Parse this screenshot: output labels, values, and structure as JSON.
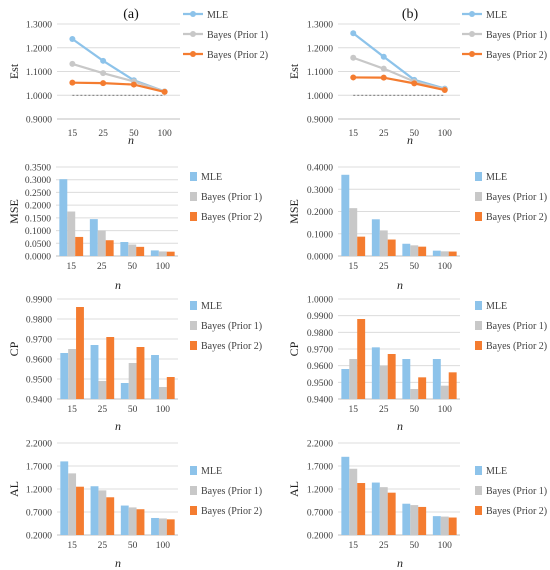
{
  "column_titles": [
    "(a)",
    "(b)"
  ],
  "colors": {
    "MLE": "#8dc3ea",
    "Bayes (Prior 1)": "#c8c8c8",
    "Bayes (Prior 2)": "#f47c30",
    "reference": "#555555",
    "grid": "#dcdcdc",
    "axis": "#bfbfbf"
  },
  "chart_data": [
    {
      "type": "line",
      "panel": "Est-a",
      "categories": [
        "15",
        "25",
        "50",
        "100"
      ],
      "xlabel": "n",
      "ylabel": "Est",
      "ylim": [
        0.9,
        1.3
      ],
      "yticks": [
        "0.9000",
        "1.0000",
        "1.1000",
        "1.2000",
        "1.3000"
      ],
      "reference_line": 1.0,
      "legend": "top-right",
      "series": [
        {
          "name": "MLE",
          "values": [
            1.237,
            1.145,
            1.063,
            1.016
          ]
        },
        {
          "name": "Bayes (Prior 1)",
          "values": [
            1.132,
            1.093,
            1.058,
            1.016
          ]
        },
        {
          "name": "Bayes (Prior 2)",
          "values": [
            1.053,
            1.051,
            1.045,
            1.014
          ]
        }
      ]
    },
    {
      "type": "line",
      "panel": "Est-b",
      "categories": [
        "15",
        "25",
        "50",
        "100"
      ],
      "xlabel": "n",
      "ylabel": "Est",
      "ylim": [
        0.9,
        1.3
      ],
      "yticks": [
        "0.9000",
        "1.0000",
        "1.1000",
        "1.2000",
        "1.3000"
      ],
      "reference_line": 1.0,
      "legend": "top-right",
      "series": [
        {
          "name": "MLE",
          "values": [
            1.261,
            1.162,
            1.065,
            1.028
          ]
        },
        {
          "name": "Bayes (Prior 1)",
          "values": [
            1.158,
            1.112,
            1.058,
            1.025
          ]
        },
        {
          "name": "Bayes (Prior 2)",
          "values": [
            1.075,
            1.074,
            1.05,
            1.022
          ]
        }
      ]
    },
    {
      "type": "bar",
      "panel": "MSE-a",
      "categories": [
        "15",
        "25",
        "50",
        "100"
      ],
      "xlabel": "n",
      "ylabel": "MSE",
      "ylim": [
        0.0,
        0.35
      ],
      "yticks": [
        "0.0000",
        "0.0500",
        "0.1000",
        "0.1500",
        "0.2000",
        "0.2500",
        "0.3000",
        "0.3500"
      ],
      "legend": "right",
      "series": [
        {
          "name": "MLE",
          "values": [
            0.302,
            0.145,
            0.055,
            0.022
          ]
        },
        {
          "name": "Bayes (Prior 1)",
          "values": [
            0.175,
            0.1,
            0.045,
            0.018
          ]
        },
        {
          "name": "Bayes (Prior 2)",
          "values": [
            0.075,
            0.062,
            0.036,
            0.017
          ]
        }
      ]
    },
    {
      "type": "bar",
      "panel": "MSE-b",
      "categories": [
        "15",
        "25",
        "50",
        "100"
      ],
      "xlabel": "n",
      "ylabel": "MSE",
      "ylim": [
        0.0,
        0.4
      ],
      "yticks": [
        "0.0000",
        "0.1000",
        "0.2000",
        "0.3000",
        "0.4000"
      ],
      "legend": "right",
      "series": [
        {
          "name": "MLE",
          "values": [
            0.365,
            0.165,
            0.055,
            0.024
          ]
        },
        {
          "name": "Bayes (Prior 1)",
          "values": [
            0.215,
            0.115,
            0.048,
            0.021
          ]
        },
        {
          "name": "Bayes (Prior 2)",
          "values": [
            0.087,
            0.074,
            0.042,
            0.02
          ]
        }
      ]
    },
    {
      "type": "bar",
      "panel": "CP-a",
      "categories": [
        "15",
        "25",
        "50",
        "100"
      ],
      "xlabel": "n",
      "ylabel": "CP",
      "ylim": [
        0.94,
        0.99
      ],
      "yticks": [
        "0.9400",
        "0.9500",
        "0.9600",
        "0.9700",
        "0.9800",
        "0.9900"
      ],
      "legend": "right",
      "series": [
        {
          "name": "MLE",
          "values": [
            0.963,
            0.967,
            0.948,
            0.962
          ]
        },
        {
          "name": "Bayes (Prior 1)",
          "values": [
            0.965,
            0.949,
            0.958,
            0.946
          ]
        },
        {
          "name": "Bayes (Prior 2)",
          "values": [
            0.986,
            0.971,
            0.966,
            0.951
          ]
        }
      ]
    },
    {
      "type": "bar",
      "panel": "CP-b",
      "categories": [
        "15",
        "25",
        "50",
        "100"
      ],
      "xlabel": "n",
      "ylabel": "CP",
      "ylim": [
        0.94,
        1.0
      ],
      "yticks": [
        "0.9400",
        "0.9500",
        "0.9600",
        "0.9700",
        "0.9800",
        "0.9900",
        "1.0000"
      ],
      "legend": "right",
      "series": [
        {
          "name": "MLE",
          "values": [
            0.958,
            0.971,
            0.964,
            0.964
          ]
        },
        {
          "name": "Bayes (Prior 1)",
          "values": [
            0.964,
            0.96,
            0.946,
            0.948
          ]
        },
        {
          "name": "Bayes (Prior 2)",
          "values": [
            0.988,
            0.967,
            0.953,
            0.956
          ]
        }
      ]
    },
    {
      "type": "bar",
      "panel": "AL-a",
      "categories": [
        "15",
        "25",
        "50",
        "100"
      ],
      "xlabel": "n",
      "ylabel": "AL",
      "ylim": [
        0.2,
        2.2
      ],
      "yticks": [
        "0.2000",
        "0.7000",
        "1.2000",
        "1.7000",
        "2.2000"
      ],
      "legend": "right",
      "series": [
        {
          "name": "MLE",
          "values": [
            1.8,
            1.26,
            0.84,
            0.57
          ]
        },
        {
          "name": "Bayes (Prior 1)",
          "values": [
            1.54,
            1.17,
            0.8,
            0.56
          ]
        },
        {
          "name": "Bayes (Prior 2)",
          "values": [
            1.25,
            1.02,
            0.76,
            0.54
          ]
        }
      ]
    },
    {
      "type": "bar",
      "panel": "AL-b",
      "categories": [
        "15",
        "25",
        "50",
        "100"
      ],
      "xlabel": "n",
      "ylabel": "AL",
      "ylim": [
        0.2,
        2.2
      ],
      "yticks": [
        "0.2000",
        "0.7000",
        "1.2000",
        "1.7000",
        "2.2000"
      ],
      "legend": "right",
      "series": [
        {
          "name": "MLE",
          "values": [
            1.9,
            1.34,
            0.88,
            0.61
          ]
        },
        {
          "name": "Bayes (Prior 1)",
          "values": [
            1.64,
            1.24,
            0.85,
            0.6
          ]
        },
        {
          "name": "Bayes (Prior 2)",
          "values": [
            1.33,
            1.12,
            0.81,
            0.58
          ]
        }
      ]
    }
  ]
}
